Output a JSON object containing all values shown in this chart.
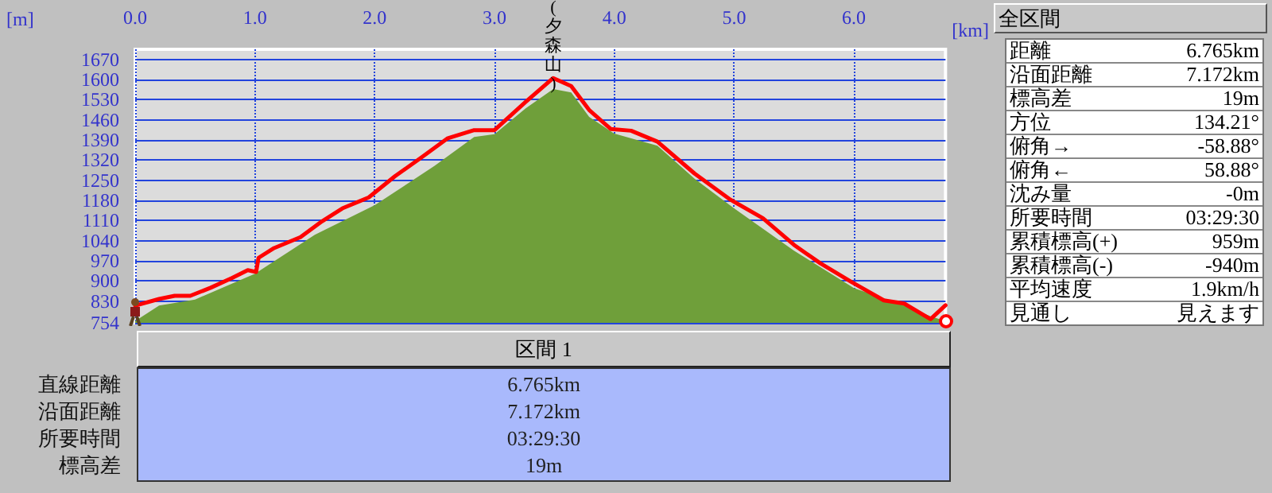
{
  "chart_data": [
    {
      "type": "area",
      "xlabel": "[km]",
      "ylabel": "[m]",
      "xlim": [
        0,
        6.765
      ],
      "ylim": [
        754,
        1705
      ],
      "xticks": [
        {
          "value": 0,
          "label": "0.0"
        },
        {
          "value": 1,
          "label": "1.0"
        },
        {
          "value": 2,
          "label": "2.0"
        },
        {
          "value": 3,
          "label": "3.0"
        },
        {
          "value": 4,
          "label": "4.0"
        },
        {
          "value": 5,
          "label": "5.0"
        },
        {
          "value": 6,
          "label": "6.0"
        }
      ],
      "yticks": [
        754,
        830,
        900,
        970,
        1040,
        1110,
        1180,
        1250,
        1320,
        1390,
        1460,
        1530,
        1600,
        1670
      ],
      "grid": true,
      "marker": "none",
      "line_style": "solid",
      "annotations": [
        {
          "text": "(夕森山)",
          "x": 3.49,
          "y": 1605
        }
      ],
      "series": [
        {
          "type": "area",
          "color": "#6f9f3a",
          "x": [
            0,
            0.2,
            0.5,
            1.0,
            1.5,
            2.0,
            2.5,
            2.83,
            3.0,
            3.26,
            3.49,
            3.64,
            3.79,
            4.0,
            4.36,
            4.67,
            5.0,
            5.5,
            6.0,
            6.42,
            6.64,
            6.765
          ],
          "values": [
            760,
            814,
            835,
            925,
            1060,
            1163,
            1300,
            1400,
            1410,
            1500,
            1567,
            1555,
            1470,
            1412,
            1370,
            1255,
            1152,
            1005,
            875,
            815,
            777,
            760
          ]
        },
        {
          "type": "line",
          "color": "#ff0000",
          "x": [
            0,
            0.2,
            0.33,
            0.46,
            0.63,
            0.81,
            0.94,
            1.01,
            1.03,
            1.16,
            1.38,
            1.56,
            1.73,
            1.95,
            2.17,
            2.39,
            2.61,
            2.83,
            3.0,
            3.26,
            3.49,
            3.64,
            3.79,
            3.97,
            4.14,
            4.36,
            4.67,
            4.97,
            5.24,
            5.5,
            5.72,
            5.98,
            6.25,
            6.42,
            6.64,
            6.765
          ],
          "values": [
            814,
            837,
            848,
            848,
            876,
            910,
            937,
            931,
            980,
            1014,
            1052,
            1107,
            1152,
            1190,
            1264,
            1329,
            1396,
            1424,
            1424,
            1522,
            1605,
            1577,
            1494,
            1428,
            1422,
            1384,
            1273,
            1182,
            1118,
            1025,
            961,
            896,
            832,
            821,
            767,
            815
          ]
        }
      ]
    },
    {
      "type": "other",
      "title": "全区間",
      "annotations": [
        "距離",
        "6.765km",
        "沿面距離",
        "7.172km",
        "標高差",
        "19m",
        "方位",
        "134.21°",
        "俯角→",
        "-58.88°",
        "俯角←",
        "58.88°",
        "沈み量",
        "-0m",
        "所要時間",
        "03:29:30",
        "累積標高(+)",
        "959m",
        "累積標高(-)",
        "-940m",
        "平均速度",
        "1.9km/h",
        "見通し",
        "見えます"
      ]
    },
    {
      "type": "other",
      "title": "区間 1",
      "annotations": [
        "直線距離",
        "6.765km",
        "沿面距離",
        "7.172km",
        "所要時間",
        "03:29:30",
        "標高差",
        "19m"
      ]
    }
  ]
}
